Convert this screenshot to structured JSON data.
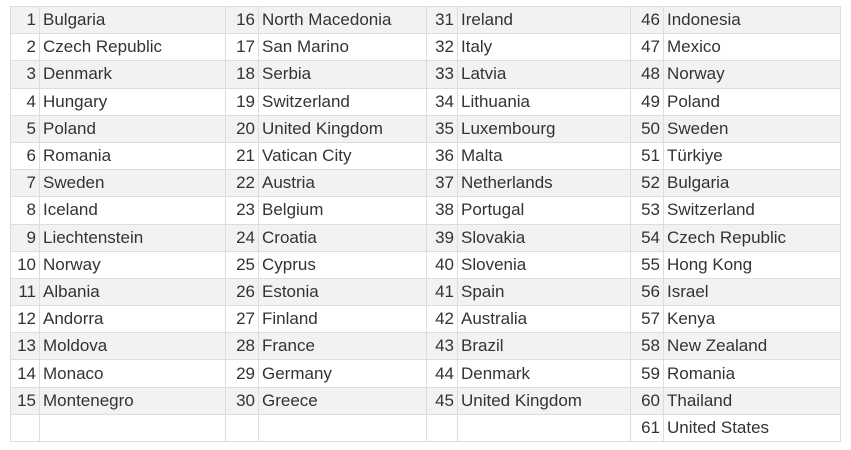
{
  "table": {
    "rows": [
      [
        {
          "n": "1",
          "c": "Bulgaria"
        },
        {
          "n": "16",
          "c": "North Macedonia"
        },
        {
          "n": "31",
          "c": "Ireland"
        },
        {
          "n": "46",
          "c": "Indonesia"
        }
      ],
      [
        {
          "n": "2",
          "c": "Czech Republic"
        },
        {
          "n": "17",
          "c": "San Marino"
        },
        {
          "n": "32",
          "c": "Italy"
        },
        {
          "n": "47",
          "c": "Mexico"
        }
      ],
      [
        {
          "n": "3",
          "c": "Denmark"
        },
        {
          "n": "18",
          "c": "Serbia"
        },
        {
          "n": "33",
          "c": "Latvia"
        },
        {
          "n": "48",
          "c": "Norway"
        }
      ],
      [
        {
          "n": "4",
          "c": "Hungary"
        },
        {
          "n": "19",
          "c": "Switzerland"
        },
        {
          "n": "34",
          "c": "Lithuania"
        },
        {
          "n": "49",
          "c": "Poland"
        }
      ],
      [
        {
          "n": "5",
          "c": "Poland"
        },
        {
          "n": "20",
          "c": "United Kingdom"
        },
        {
          "n": "35",
          "c": "Luxembourg"
        },
        {
          "n": "50",
          "c": "Sweden"
        }
      ],
      [
        {
          "n": "6",
          "c": "Romania"
        },
        {
          "n": "21",
          "c": "Vatican City"
        },
        {
          "n": "36",
          "c": "Malta"
        },
        {
          "n": "51",
          "c": "Türkiye"
        }
      ],
      [
        {
          "n": "7",
          "c": "Sweden"
        },
        {
          "n": "22",
          "c": "Austria"
        },
        {
          "n": "37",
          "c": "Netherlands"
        },
        {
          "n": "52",
          "c": "Bulgaria"
        }
      ],
      [
        {
          "n": "8",
          "c": "Iceland"
        },
        {
          "n": "23",
          "c": "Belgium"
        },
        {
          "n": "38",
          "c": "Portugal"
        },
        {
          "n": "53",
          "c": "Switzerland"
        }
      ],
      [
        {
          "n": "9",
          "c": "Liechtenstein"
        },
        {
          "n": "24",
          "c": "Croatia"
        },
        {
          "n": "39",
          "c": "Slovakia"
        },
        {
          "n": "54",
          "c": "Czech Republic"
        }
      ],
      [
        {
          "n": "10",
          "c": "Norway"
        },
        {
          "n": "25",
          "c": "Cyprus"
        },
        {
          "n": "40",
          "c": "Slovenia"
        },
        {
          "n": "55",
          "c": "Hong Kong"
        }
      ],
      [
        {
          "n": "11",
          "c": "Albania"
        },
        {
          "n": "26",
          "c": "Estonia"
        },
        {
          "n": "41",
          "c": "Spain"
        },
        {
          "n": "56",
          "c": "Israel"
        }
      ],
      [
        {
          "n": "12",
          "c": "Andorra"
        },
        {
          "n": "27",
          "c": "Finland"
        },
        {
          "n": "42",
          "c": "Australia"
        },
        {
          "n": "57",
          "c": "Kenya"
        }
      ],
      [
        {
          "n": "13",
          "c": "Moldova"
        },
        {
          "n": "28",
          "c": "France"
        },
        {
          "n": "43",
          "c": "Brazil"
        },
        {
          "n": "58",
          "c": "New Zealand"
        }
      ],
      [
        {
          "n": "14",
          "c": "Monaco"
        },
        {
          "n": "29",
          "c": "Germany"
        },
        {
          "n": "44",
          "c": "Denmark"
        },
        {
          "n": "59",
          "c": "Romania"
        }
      ],
      [
        {
          "n": "15",
          "c": "Montenegro"
        },
        {
          "n": "30",
          "c": "Greece"
        },
        {
          "n": "45",
          "c": "United Kingdom"
        },
        {
          "n": "60",
          "c": "Thailand"
        }
      ],
      [
        {
          "n": "",
          "c": ""
        },
        {
          "n": "",
          "c": ""
        },
        {
          "n": "",
          "c": ""
        },
        {
          "n": "61",
          "c": "United States"
        }
      ]
    ]
  }
}
